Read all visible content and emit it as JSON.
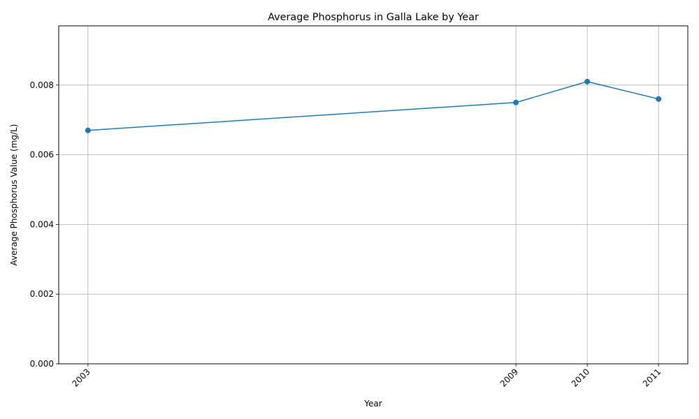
{
  "chart_data": {
    "type": "line",
    "title": "Average Phosphorus in Galla Lake by Year",
    "xlabel": "Year",
    "ylabel": "Average Phosphorus Value (mg/L)",
    "x": [
      2003,
      2009,
      2010,
      2011
    ],
    "x_tick_labels": [
      "2003",
      "2009",
      "2010",
      "2011"
    ],
    "series": [
      {
        "values": [
          0.0067,
          0.0075,
          0.0081,
          0.0076
        ]
      }
    ],
    "y_ticks": [
      0.0,
      0.002,
      0.004,
      0.006,
      0.008
    ],
    "y_tick_labels": [
      "0.000",
      "0.002",
      "0.004",
      "0.006",
      "0.008"
    ],
    "xlim": [
      2002.59,
      2011.41
    ],
    "ylim": [
      0,
      0.0097
    ],
    "grid": true,
    "marker": "circle",
    "line_color": "#1f77b4",
    "grid_color": "#b0b0b0"
  }
}
